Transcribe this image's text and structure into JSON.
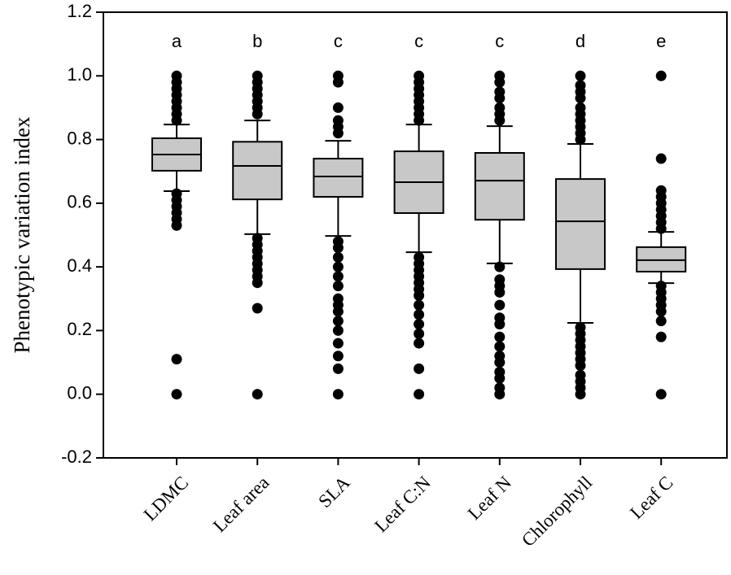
{
  "chart_data": {
    "type": "box",
    "y_label": "Phenotypic variation index",
    "categories": [
      "LDMC",
      "Leaf area",
      "SLA",
      "Leaf C:N",
      "Leaf N",
      "Chlorophyll",
      "Leaf C"
    ],
    "annotations": [
      "a",
      "b",
      "c",
      "c",
      "c",
      "d",
      "e"
    ],
    "ylim": [
      -0.2,
      1.2
    ],
    "yticks": [
      -0.2,
      {
        "value": 0,
        "label": "0.0"
      },
      0.2,
      0.4,
      0.6,
      0.8,
      {
        "value": 1,
        "label": "1.0"
      },
      1.2
    ],
    "color": "#c8c8c8",
    "boxes": [
      {
        "whisker_low": 0.638,
        "q1": 0.702,
        "median": 0.753,
        "q3": 0.804,
        "whisker_high": 0.847,
        "outliers": [
          1.0,
          0.98,
          0.96,
          0.94,
          0.92,
          0.9,
          0.88,
          0.86,
          0.63,
          0.61,
          0.59,
          0.57,
          0.55,
          0.53,
          0.11,
          0.0
        ]
      },
      {
        "whisker_low": 0.503,
        "q1": 0.612,
        "median": 0.717,
        "q3": 0.793,
        "whisker_high": 0.86,
        "outliers": [
          1.0,
          0.98,
          0.96,
          0.94,
          0.92,
          0.9,
          0.88,
          0.49,
          0.47,
          0.45,
          0.43,
          0.41,
          0.39,
          0.37,
          0.35,
          0.27,
          0.0
        ]
      },
      {
        "whisker_low": 0.497,
        "q1": 0.62,
        "median": 0.684,
        "q3": 0.74,
        "whisker_high": 0.796,
        "outliers": [
          1.0,
          0.98,
          0.9,
          0.86,
          0.84,
          0.82,
          0.48,
          0.46,
          0.43,
          0.4,
          0.37,
          0.34,
          0.3,
          0.28,
          0.26,
          0.23,
          0.2,
          0.16,
          0.12,
          0.08,
          0.0
        ]
      },
      {
        "whisker_low": 0.446,
        "q1": 0.569,
        "median": 0.666,
        "q3": 0.763,
        "whisker_high": 0.847,
        "outliers": [
          1.0,
          0.98,
          0.96,
          0.94,
          0.92,
          0.9,
          0.88,
          0.86,
          0.43,
          0.41,
          0.39,
          0.37,
          0.35,
          0.33,
          0.31,
          0.28,
          0.25,
          0.22,
          0.19,
          0.16,
          0.08,
          0.0
        ]
      },
      {
        "whisker_low": 0.411,
        "q1": 0.548,
        "median": 0.671,
        "q3": 0.758,
        "whisker_high": 0.842,
        "outliers": [
          1.0,
          0.98,
          0.95,
          0.93,
          0.9,
          0.88,
          0.86,
          0.4,
          0.36,
          0.34,
          0.32,
          0.28,
          0.24,
          0.22,
          0.18,
          0.15,
          0.12,
          0.1,
          0.07,
          0.05,
          0.02,
          0.0
        ]
      },
      {
        "whisker_low": 0.224,
        "q1": 0.393,
        "median": 0.543,
        "q3": 0.676,
        "whisker_high": 0.786,
        "outliers": [
          1.0,
          0.97,
          0.95,
          0.93,
          0.9,
          0.88,
          0.86,
          0.84,
          0.82,
          0.8,
          0.21,
          0.19,
          0.17,
          0.15,
          0.13,
          0.11,
          0.09,
          0.06,
          0.04,
          0.02,
          0.0
        ]
      },
      {
        "whisker_low": 0.349,
        "q1": 0.385,
        "median": 0.421,
        "q3": 0.462,
        "whisker_high": 0.51,
        "outliers": [
          1.0,
          0.74,
          0.64,
          0.62,
          0.6,
          0.58,
          0.56,
          0.54,
          0.52,
          0.34,
          0.32,
          0.3,
          0.28,
          0.26,
          0.23,
          0.18,
          0.0
        ]
      }
    ]
  }
}
